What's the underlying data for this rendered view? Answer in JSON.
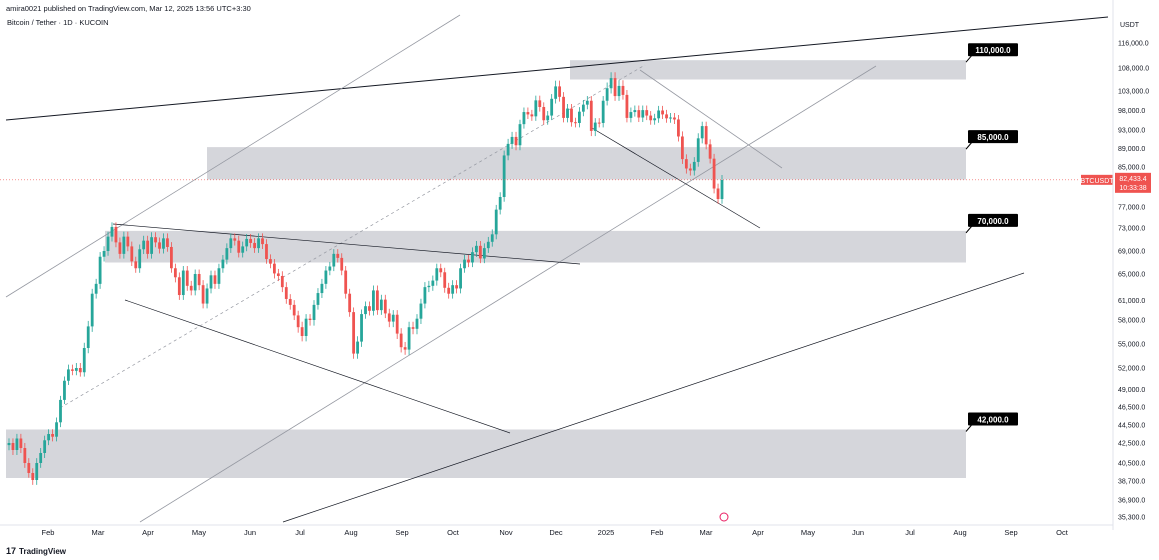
{
  "header": {
    "published_text": "amira0021 published on TradingView.com, Mar 12, 2025 13:56 UTC+3:30",
    "symbol_text": "Bitcoin / Tether · 1D · KUCOIN"
  },
  "footer": {
    "logo_text": "17",
    "brand": "TradingView"
  },
  "colors": {
    "up": "#26a69a",
    "down": "#ef5350",
    "zone": "#b2b5be",
    "line": "#131722",
    "grey_line": "#9598a1",
    "price_line": "#ef5350"
  },
  "chart_data": {
    "type": "candlestick",
    "symbol": "BTCUSDT",
    "quote_currency": "USDT",
    "x_ticks": [
      "Feb",
      "Mar",
      "Apr",
      "May",
      "Jun",
      "Jul",
      "Aug",
      "Sep",
      "Oct",
      "Nov",
      "Dec",
      "2025",
      "Feb",
      "Mar",
      "Apr",
      "May",
      "Jun",
      "Jul",
      "Aug",
      "Sep",
      "Oct"
    ],
    "y_ticks": [
      "116,000.0",
      "108,000.0",
      "103,000.0",
      "98,000.0",
      "93,000.0",
      "89,000.0",
      "85,000.0",
      "77,000.0",
      "73,000.0",
      "69,000.0",
      "65,000.0",
      "61,000.0",
      "58,000.0",
      "55,000.0",
      "52,000.0",
      "49,000.0",
      "46,500.0",
      "44,500.0",
      "42,500.0",
      "40,500.0",
      "38,700.0",
      "36,900.0",
      "35,300.0"
    ],
    "last_price": {
      "symbol": "BTCUSDT",
      "value": "82,433.4",
      "countdown": "10:33:38"
    },
    "zones": [
      {
        "label": "110,000.0",
        "low": 105500,
        "high": 110500
      },
      {
        "label": "85,000.0",
        "low": 82500,
        "high": 89300
      },
      {
        "label": "70,000.0",
        "low": 67000,
        "high": 72500
      },
      {
        "label": "42,000.0",
        "low": 39000,
        "high": 44000
      }
    ],
    "closes": [
      42500,
      41800,
      43000,
      42000,
      40500,
      39500,
      38800,
      40500,
      41500,
      42800,
      43500,
      43200,
      44800,
      47500,
      50200,
      51800,
      51600,
      52000,
      51400,
      54500,
      57200,
      62000,
      63500,
      68000,
      69000,
      71500,
      73200,
      70500,
      68500,
      71500,
      69800,
      67200,
      66000,
      69300,
      70800,
      68500,
      71400,
      70500,
      69400,
      71200,
      69700,
      66000,
      64500,
      61800,
      65600,
      63200,
      62500,
      65000,
      63300,
      60500,
      62800,
      64800,
      63500,
      66000,
      67500,
      69500,
      71200,
      70800,
      68700,
      69800,
      71100,
      70400,
      69500,
      71200,
      70200,
      67600,
      66800,
      65100,
      64700,
      63000,
      61200,
      60300,
      58700,
      57100,
      56000,
      58200,
      58000,
      60300,
      62100,
      63500,
      65600,
      66300,
      68500,
      67800,
      65600,
      62000,
      59200,
      53800,
      55300,
      58900,
      60100,
      59400,
      62500,
      59500,
      61100,
      59000,
      57800,
      58800,
      56300,
      54600,
      54300,
      57100,
      56900,
      58200,
      60500,
      63000,
      63200,
      64000,
      66000,
      65300,
      62900,
      62000,
      63300,
      62800,
      66000,
      67500,
      67000,
      68800,
      69900,
      67700,
      69500,
      70600,
      71900,
      76500,
      79000,
      87500,
      90000,
      91500,
      89700,
      94500,
      97600,
      97000,
      96500,
      100600,
      98900,
      95500,
      96700,
      101000,
      104000,
      101500,
      96100,
      98500,
      95000,
      94800,
      97700,
      99500,
      100500,
      92800,
      94900,
      94800,
      100500,
      103600,
      105800,
      101700,
      104100,
      102000,
      96100,
      97600,
      98100,
      96200,
      98100,
      96700,
      95500,
      96000,
      98000,
      97000,
      96000,
      96200,
      95700,
      91600,
      86700,
      84700,
      84300,
      86100,
      91200,
      94000,
      89900,
      86800,
      80700,
      78600,
      82400
    ]
  }
}
